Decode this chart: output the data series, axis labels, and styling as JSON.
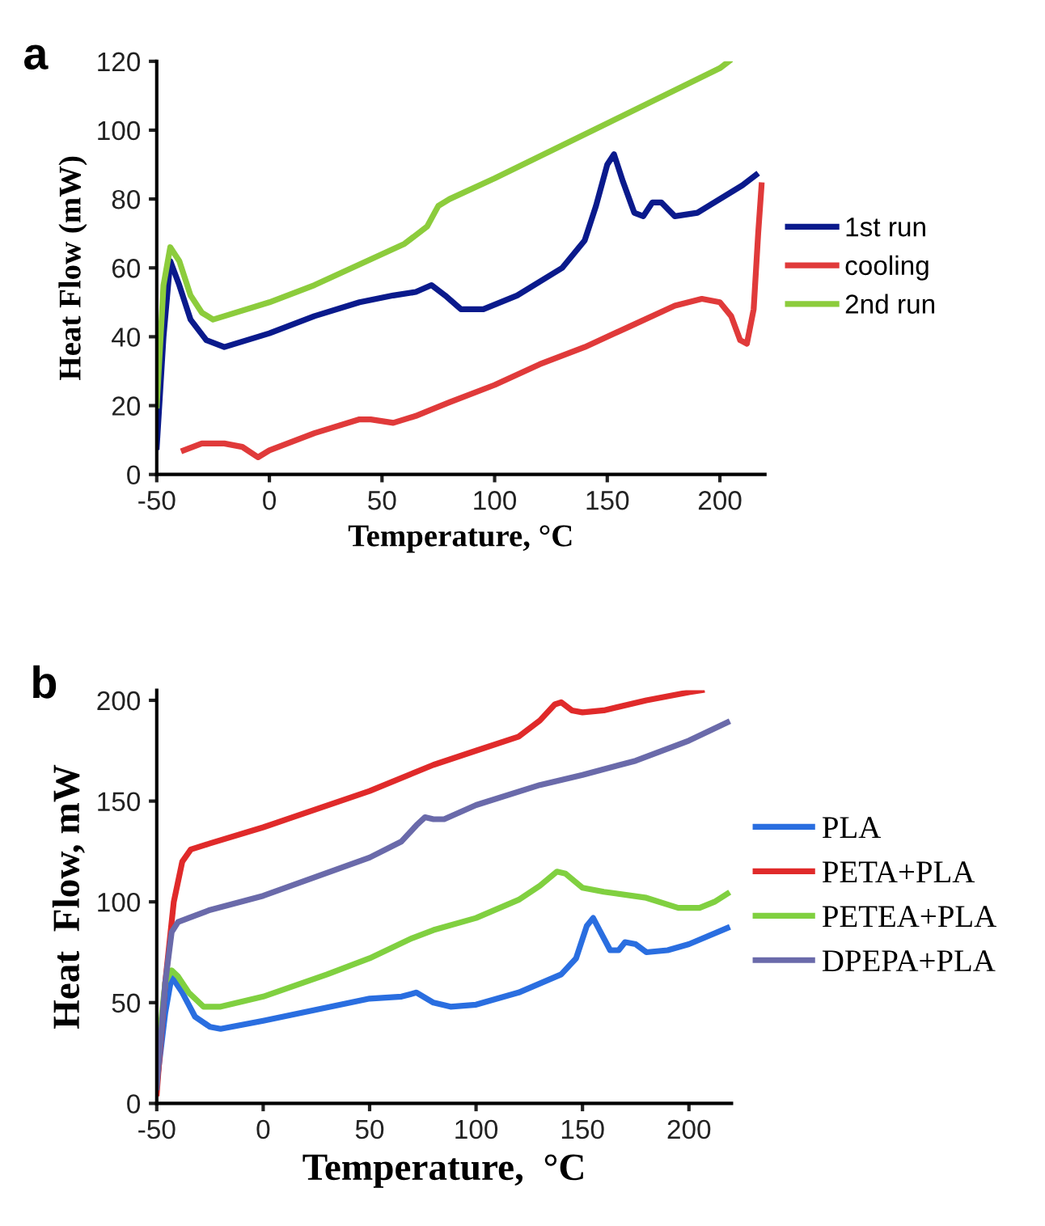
{
  "chart_data": [
    {
      "type": "line",
      "title": "a",
      "xlabel": "Temperature, °C",
      "ylabel": "Heat Flow (mW)",
      "xlim": [
        -50,
        220
      ],
      "xticks": [
        -50,
        0,
        50,
        100,
        150,
        200
      ],
      "ylim": [
        0,
        120
      ],
      "yticks": [
        0,
        20,
        40,
        60,
        80,
        100,
        120
      ],
      "grid": false,
      "legend": "right",
      "marker": "none",
      "line_style": "solid",
      "series": [
        {
          "name": "1st run",
          "color": "#0a1a8c",
          "x": [
            -50,
            -47,
            -44,
            -40,
            -35,
            -28,
            -20,
            -10,
            0,
            20,
            40,
            55,
            65,
            72,
            78,
            85,
            95,
            110,
            130,
            140,
            145,
            150,
            153,
            157,
            162,
            166,
            170,
            174,
            180,
            190,
            200,
            210,
            216
          ],
          "values": [
            8,
            40,
            62,
            55,
            45,
            39,
            37,
            39,
            41,
            46,
            50,
            52,
            53,
            55,
            52,
            48,
            48,
            52,
            60,
            68,
            78,
            90,
            93,
            85,
            76,
            75,
            79,
            79,
            75,
            76,
            80,
            84,
            87
          ]
        },
        {
          "name": "cooling",
          "color": "#e03a3a",
          "x": [
            -38,
            -30,
            -20,
            -12,
            -5,
            0,
            20,
            40,
            45,
            55,
            65,
            80,
            100,
            120,
            140,
            160,
            180,
            192,
            200,
            205,
            209,
            212,
            215,
            217,
            218.5
          ],
          "values": [
            7,
            9,
            9,
            8,
            5,
            7,
            12,
            16,
            16,
            15,
            17,
            21,
            26,
            32,
            37,
            43,
            49,
            51,
            50,
            46,
            39,
            38,
            48,
            70,
            84
          ]
        },
        {
          "name": "2nd run",
          "color": "#8ccc3c",
          "x": [
            -50,
            -47,
            -44,
            -40,
            -35,
            -30,
            -25,
            -20,
            0,
            20,
            40,
            60,
            70,
            75,
            80,
            100,
            150,
            200,
            204
          ],
          "values": [
            20,
            55,
            66,
            62,
            52,
            47,
            45,
            46,
            50,
            55,
            61,
            67,
            72,
            78,
            80,
            86,
            102,
            118,
            120
          ]
        }
      ]
    },
    {
      "type": "line",
      "title": "b",
      "xlabel": "Temperature,  °C",
      "ylabel": "Heat  Flow, mW",
      "xlim": [
        -50,
        220
      ],
      "xticks": [
        -50,
        0,
        50,
        100,
        150,
        200
      ],
      "ylim": [
        0,
        205
      ],
      "yticks": [
        0,
        50,
        100,
        150,
        200
      ],
      "grid": false,
      "legend": "right",
      "marker": "none",
      "line_style": "solid",
      "series": [
        {
          "name": "PLA",
          "color": "#2a6ee0",
          "x": [
            -50,
            -46,
            -43,
            -38,
            -32,
            -25,
            -20,
            0,
            50,
            65,
            72,
            80,
            88,
            100,
            120,
            140,
            147,
            152,
            155,
            158,
            163,
            167,
            170,
            175,
            180,
            190,
            200,
            218
          ],
          "values": [
            10,
            45,
            63,
            55,
            43,
            38,
            37,
            41,
            52,
            53,
            55,
            50,
            48,
            49,
            55,
            64,
            72,
            88,
            92,
            86,
            76,
            76,
            80,
            79,
            75,
            76,
            79,
            87
          ]
        },
        {
          "name": "PETA+PLA",
          "color": "#e02a2a",
          "x": [
            -50,
            -46,
            -42,
            -38,
            -34,
            -25,
            0,
            50,
            80,
            100,
            120,
            130,
            137,
            140,
            145,
            150,
            160,
            180,
            200,
            206
          ],
          "values": [
            5,
            60,
            100,
            120,
            126,
            129,
            137,
            155,
            168,
            175,
            182,
            190,
            198,
            199,
            195,
            194,
            195,
            200,
            204,
            205
          ]
        },
        {
          "name": "PETEA+PLA",
          "color": "#80d040",
          "x": [
            -50,
            -46,
            -43,
            -40,
            -35,
            -28,
            -20,
            0,
            30,
            50,
            70,
            80,
            100,
            120,
            130,
            138,
            142,
            150,
            160,
            180,
            195,
            205,
            212,
            218
          ],
          "values": [
            20,
            60,
            66,
            63,
            55,
            48,
            48,
            53,
            64,
            72,
            82,
            86,
            92,
            101,
            108,
            115,
            114,
            107,
            105,
            102,
            97,
            97,
            100,
            104
          ]
        },
        {
          "name": "DPEPA+PLA",
          "color": "#6a6aaa",
          "x": [
            -50,
            -46,
            -43,
            -40,
            -35,
            -25,
            0,
            50,
            65,
            72,
            76,
            80,
            85,
            100,
            130,
            150,
            175,
            200,
            218
          ],
          "values": [
            8,
            60,
            85,
            90,
            92,
            96,
            103,
            122,
            130,
            138,
            142,
            141,
            141,
            148,
            158,
            163,
            170,
            180,
            189
          ]
        }
      ]
    }
  ]
}
